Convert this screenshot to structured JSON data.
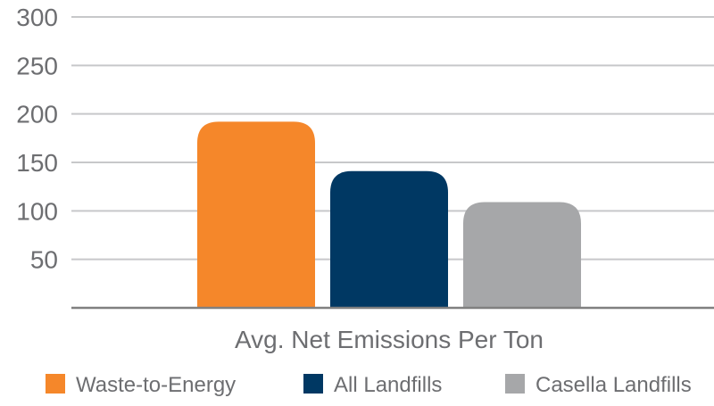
{
  "chart_data": {
    "type": "bar",
    "categories": [
      "Avg. Net Emissions Per Ton"
    ],
    "series": [
      {
        "name": "Waste-to-Energy",
        "values": [
          192
        ],
        "color": "#f5872a"
      },
      {
        "name": "All Landfills",
        "values": [
          141
        ],
        "color": "#003863"
      },
      {
        "name": "Casella Landfills",
        "values": [
          109
        ],
        "color": "#a6a7a9"
      }
    ],
    "title": "",
    "xlabel": "Avg. Net Emissions Per Ton",
    "ylabel": "",
    "ylim": [
      0,
      300
    ],
    "yticks": [
      50,
      100,
      150,
      200,
      250,
      300
    ],
    "grid": true,
    "legend": "bottom",
    "colors": {
      "tick_text": "#6d6e71",
      "gridline": "#c7c8ca",
      "axis": "#808080"
    }
  }
}
